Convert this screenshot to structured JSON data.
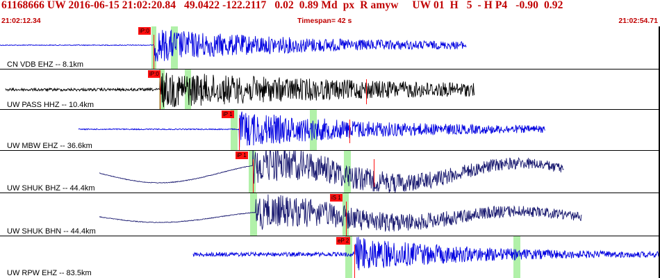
{
  "header": {
    "title": "61168666 UW 2016-06-15 21:02:20.84   49.0422 -122.2117   0.02  0.89 Md  px  R amyw     UW 01  H   5  - H P4   -0.90  0.92",
    "time_start": "21:02:12.34",
    "timespan": "Timespan=  42 s",
    "time_end": "21:02:54.71"
  },
  "colors": {
    "header_text": "#c00000",
    "pick": "#ff1010",
    "window": "#a8f0a0",
    "blue_trace": "#0000e0",
    "black_trace": "#000000",
    "navy_trace": "#1a1a70"
  },
  "panels": [
    {
      "label": "CN VDB EHZ -- 8.1km",
      "pick": "iP:0",
      "color": "blue",
      "icon": "seismogram-trace"
    },
    {
      "label": "UW PASS HHZ -- 10.4km",
      "pick": "iP:0",
      "color": "black",
      "icon": "seismogram-trace"
    },
    {
      "label": "UW MBW EHZ -- 36.6km",
      "pick": "iP 1",
      "color": "blue",
      "icon": "seismogram-trace"
    },
    {
      "label": "UW SHUK BHZ -- 44.4km",
      "pick": "iP 1",
      "color": "navy",
      "icon": "seismogram-trace"
    },
    {
      "label": "UW SHUK BHN -- 44.4km",
      "pick": "iS 1",
      "color": "navy",
      "icon": "seismogram-trace"
    },
    {
      "label": "UW RPW EHZ -- 83.5km",
      "pick": "eP 2",
      "color": "blue",
      "icon": "seismogram-trace"
    }
  ]
}
